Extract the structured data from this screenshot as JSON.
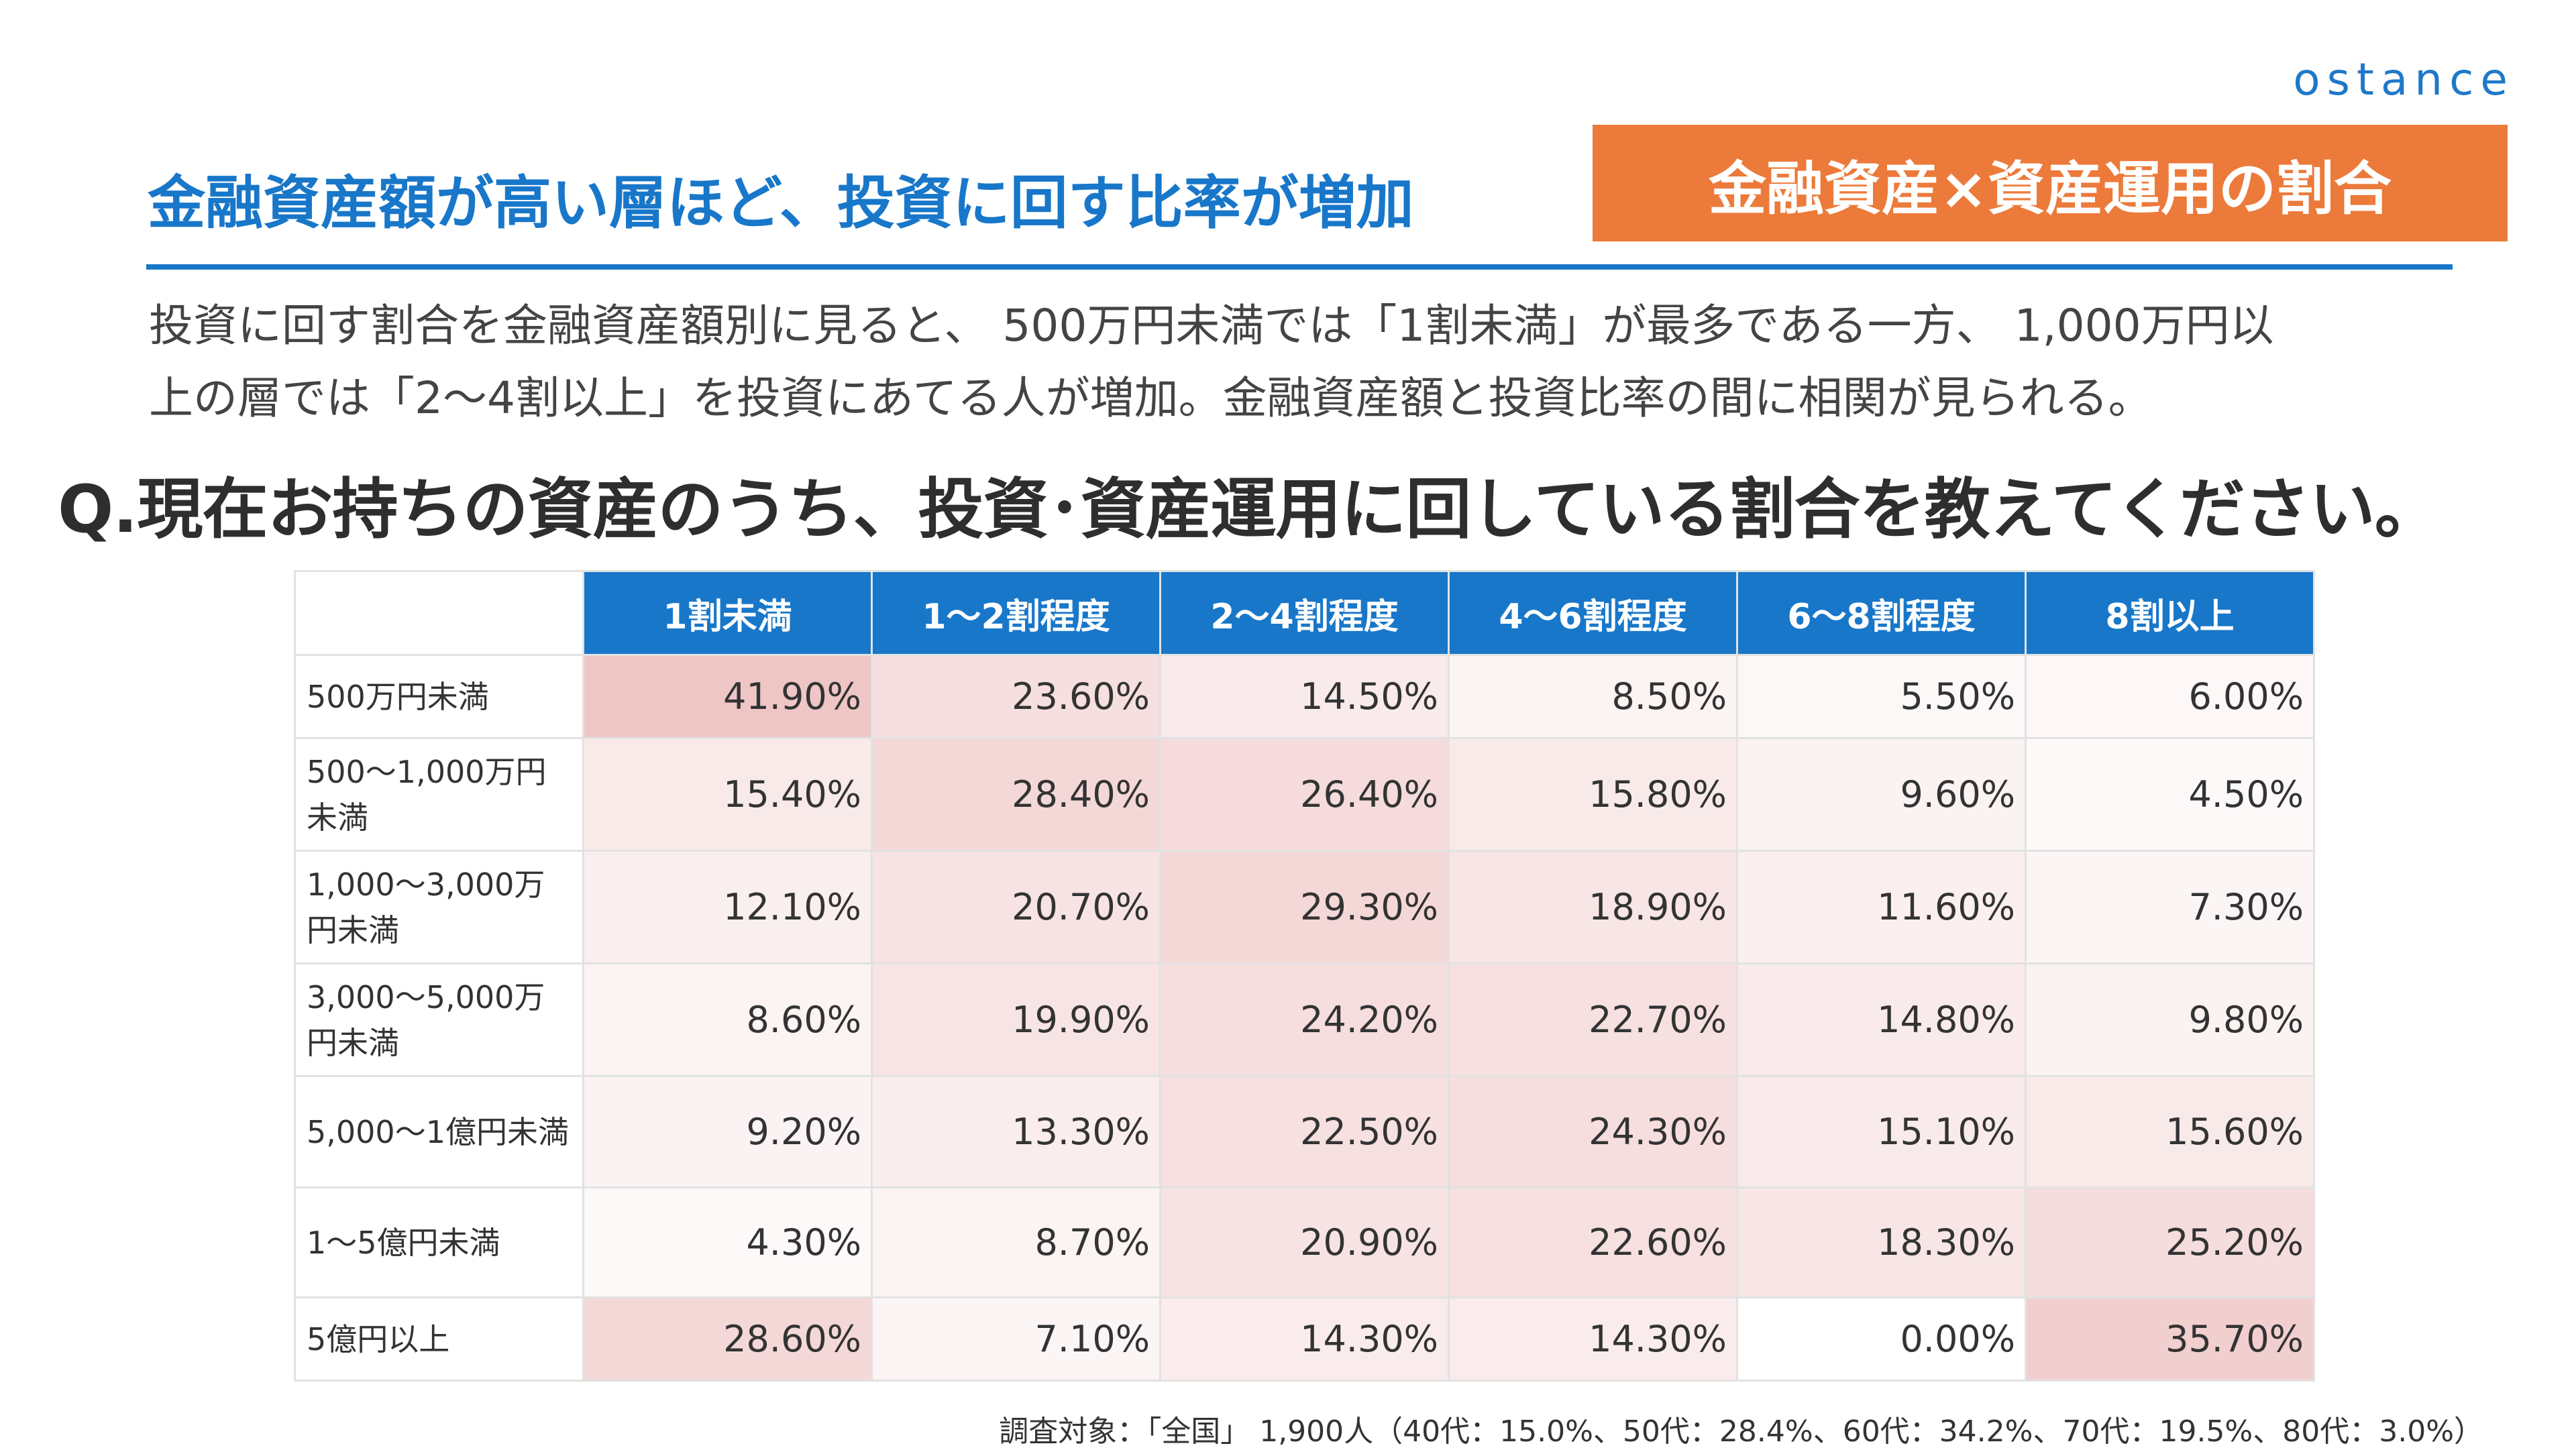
{
  "brand": {
    "logo_text": "ostance"
  },
  "header": {
    "headline": "金融資産額が高い層ほど、投資に回す比率が増加",
    "tag": "金融資産×資産運用の割合",
    "accent_color": "#1877c9",
    "tag_color": "#ec7a3a"
  },
  "lead": {
    "line1": "投資に回す割合を金融資産額別に見ると、 500万円未満では「1割未満」が最多である一方、 1,000万円以",
    "line2": "上の層では「2〜4割以上」を投資にあてる人が増加。金融資産額と投資比率の間に相関が見られる。"
  },
  "question": "Q.現在お持ちの資産のうち、投資･資産運用に回している割合を教えてください。",
  "chart_data": {
    "type": "table",
    "columns": [
      "1割未満",
      "1〜2割程度",
      "2〜4割程度",
      "4〜6割程度",
      "6〜8割程度",
      "8割以上"
    ],
    "rows": [
      {
        "label": "500万円未満",
        "values": [
          "41.90%",
          "23.60%",
          "14.50%",
          "8.50%",
          "5.50%",
          "6.00%"
        ]
      },
      {
        "label": "500〜1,000万円未満",
        "values": [
          "15.40%",
          "28.40%",
          "26.40%",
          "15.80%",
          "9.60%",
          "4.50%"
        ]
      },
      {
        "label": "1,000〜3,000万円未満",
        "values": [
          "12.10%",
          "20.70%",
          "29.30%",
          "18.90%",
          "11.60%",
          "7.30%"
        ]
      },
      {
        "label": "3,000〜5,000万円未満",
        "values": [
          "8.60%",
          "19.90%",
          "24.20%",
          "22.70%",
          "14.80%",
          "9.80%"
        ]
      },
      {
        "label": "5,000〜1億円未満",
        "values": [
          "9.20%",
          "13.30%",
          "22.50%",
          "24.30%",
          "15.10%",
          "15.60%"
        ]
      },
      {
        "label": "1〜5億円未満",
        "values": [
          "4.30%",
          "8.70%",
          "20.90%",
          "22.60%",
          "18.30%",
          "25.20%"
        ]
      },
      {
        "label": "5億円以上",
        "values": [
          "28.60%",
          "7.10%",
          "14.30%",
          "14.30%",
          "0.00%",
          "35.70%"
        ]
      }
    ],
    "heat_color_max": "#efc6c6",
    "heat_color_min": "#ffffff"
  },
  "footnote": "調査対象：「全国」 1,900人（40代：15.0%、50代：28.4%、60代：34.2%、70代：19.5%、80代：3.0%）"
}
